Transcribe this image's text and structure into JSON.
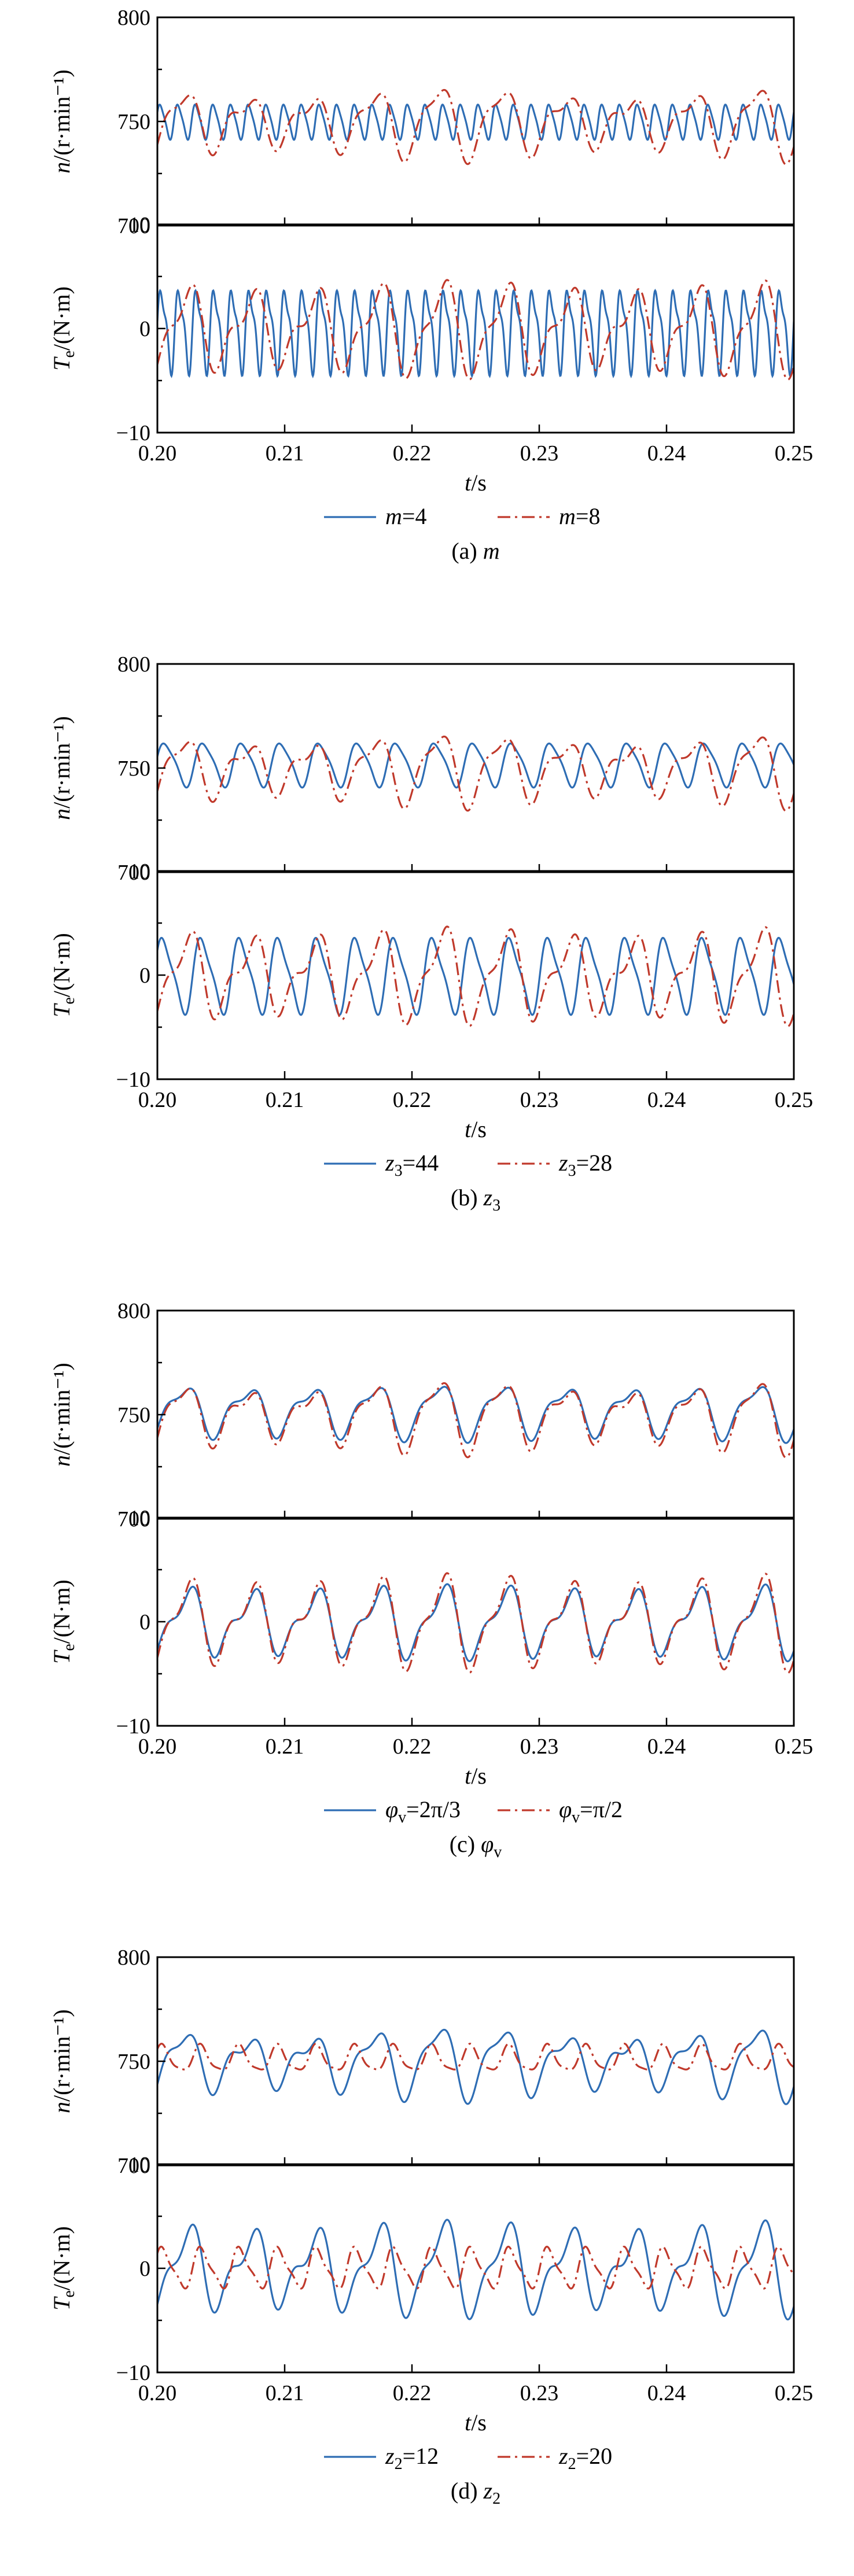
{
  "chart_data": [
    {
      "id": "a",
      "caption": {
        "prefix": "(a) ",
        "symbol": "m",
        "sub": ""
      },
      "legend": [
        {
          "symbol": "m",
          "sub": "",
          "value": "=4"
        },
        {
          "symbol": "m",
          "sub": "",
          "value": "=8"
        }
      ],
      "xlabel": {
        "symbol": "t",
        "unit": "/s"
      },
      "xlim": [
        0.2,
        0.25
      ],
      "xticks": [
        "0.20",
        "0.21",
        "0.22",
        "0.23",
        "0.24",
        "0.25"
      ],
      "panels": [
        {
          "type": "line",
          "ylabel": "n/(r·min⁻¹)",
          "ylim": [
            700,
            800
          ],
          "yticks": [
            "700",
            "750",
            "800"
          ],
          "series": [
            {
              "freq": 720,
              "terms": [
                [
                  8,
                  0,
                  0.4
                ],
                [
                  1.5,
                  2,
                  1.1
                ]
              ],
              "offset": 750
            },
            {
              "freq": 200,
              "terms": [
                [
                  13,
                  0,
                  -1.0
                ],
                [
                  5,
                  2,
                  0.3
                ]
              ],
              "offset": 750,
              "env": 0.25
            }
          ]
        },
        {
          "type": "line",
          "ylabel": "Te/(N·m)",
          "ylim": [
            -10,
            10
          ],
          "yticks": [
            "−10",
            "0",
            "10"
          ],
          "series": [
            {
              "freq": 720,
              "terms": [
                [
                  3.6,
                  0,
                  0.0
                ],
                [
                  1.2,
                  2,
                  0.6
                ]
              ],
              "offset": 0
            },
            {
              "freq": 200,
              "terms": [
                [
                  3.5,
                  0,
                  -1.4
                ],
                [
                  1.5,
                  2,
                  0.2
                ]
              ],
              "offset": 0,
              "env": 0.15
            }
          ]
        }
      ]
    },
    {
      "id": "b",
      "caption": {
        "prefix": "(b) ",
        "symbol": "z",
        "sub": "3"
      },
      "legend": [
        {
          "symbol": "z",
          "sub": "3",
          "value": "=44"
        },
        {
          "symbol": "z",
          "sub": "3",
          "value": "=28"
        }
      ],
      "xlabel": {
        "symbol": "t",
        "unit": "/s"
      },
      "xlim": [
        0.2,
        0.25
      ],
      "xticks": [
        "0.20",
        "0.21",
        "0.22",
        "0.23",
        "0.24",
        "0.25"
      ],
      "panels": [
        {
          "type": "line",
          "ylabel": "n/(r·min⁻¹)",
          "ylim": [
            700,
            800
          ],
          "yticks": [
            "700",
            "750",
            "800"
          ],
          "series": [
            {
              "freq": 330,
              "terms": [
                [
                  10,
                  0,
                  0.2
                ],
                [
                  2,
                  2,
                  0.9
                ]
              ],
              "offset": 752
            },
            {
              "freq": 200,
              "terms": [
                [
                  13,
                  0,
                  -1.0
                ],
                [
                  5,
                  2,
                  0.3
                ]
              ],
              "offset": 750,
              "env": 0.25
            }
          ]
        },
        {
          "type": "line",
          "ylabel": "Te/(N·m)",
          "ylim": [
            -10,
            10
          ],
          "yticks": [
            "−10",
            "0",
            "10"
          ],
          "series": [
            {
              "freq": 330,
              "terms": [
                [
                  3.4,
                  0,
                  0.5
                ],
                [
                  0.8,
                  2,
                  1.2
                ]
              ],
              "offset": 0
            },
            {
              "freq": 200,
              "terms": [
                [
                  3.5,
                  0,
                  -1.4
                ],
                [
                  1.5,
                  2,
                  0.2
                ]
              ],
              "offset": 0,
              "env": 0.15
            }
          ]
        }
      ]
    },
    {
      "id": "c",
      "caption": {
        "prefix": "(c) ",
        "symbol": "φ",
        "sub": "v"
      },
      "legend": [
        {
          "symbol": "φ",
          "sub": "v",
          "value": "=2π/3"
        },
        {
          "symbol": "φ",
          "sub": "v",
          "value": "=π/2"
        }
      ],
      "xlabel": {
        "symbol": "t",
        "unit": "/s"
      },
      "xlim": [
        0.2,
        0.25
      ],
      "xticks": [
        "0.20",
        "0.21",
        "0.22",
        "0.23",
        "0.24",
        "0.25"
      ],
      "panels": [
        {
          "type": "line",
          "ylabel": "n/(r·min⁻¹)",
          "ylim": [
            700,
            800
          ],
          "yticks": [
            "700",
            "750",
            "800"
          ],
          "series": [
            {
              "freq": 200,
              "terms": [
                [
                  11,
                  0,
                  -1.0
                ],
                [
                  4,
                  2,
                  0.3
                ]
              ],
              "offset": 752,
              "env": 0.1
            },
            {
              "freq": 200,
              "terms": [
                [
                  13,
                  0,
                  -1.0
                ],
                [
                  5,
                  2,
                  0.3
                ]
              ],
              "offset": 750,
              "env": 0.25
            }
          ]
        },
        {
          "type": "line",
          "ylabel": "Te/(N·m)",
          "ylim": [
            -10,
            10
          ],
          "yticks": [
            "−10",
            "0",
            "10"
          ],
          "series": [
            {
              "freq": 200,
              "terms": [
                [
                  2.8,
                  0,
                  -1.4
                ],
                [
                  1.2,
                  2,
                  0.2
                ]
              ],
              "offset": 0,
              "env": 0.1
            },
            {
              "freq": 200,
              "terms": [
                [
                  3.5,
                  0,
                  -1.4
                ],
                [
                  1.5,
                  2,
                  0.2
                ]
              ],
              "offset": 0,
              "env": 0.15
            }
          ]
        }
      ]
    },
    {
      "id": "d",
      "caption": {
        "prefix": "(d) ",
        "symbol": "z",
        "sub": "2"
      },
      "legend": [
        {
          "symbol": "z",
          "sub": "2",
          "value": "=12"
        },
        {
          "symbol": "z",
          "sub": "2",
          "value": "=20"
        }
      ],
      "xlabel": {
        "symbol": "t",
        "unit": "/s"
      },
      "xlim": [
        0.2,
        0.25
      ],
      "xticks": [
        "0.20",
        "0.21",
        "0.22",
        "0.23",
        "0.24",
        "0.25"
      ],
      "panels": [
        {
          "type": "line",
          "ylabel": "n/(r·min⁻¹)",
          "ylim": [
            700,
            800
          ],
          "yticks": [
            "700",
            "750",
            "800"
          ],
          "series": [
            {
              "freq": 200,
              "terms": [
                [
                  13,
                  0,
                  -1.0
                ],
                [
                  5,
                  2,
                  0.3
                ]
              ],
              "offset": 750,
              "env": 0.25
            },
            {
              "freq": 330,
              "terms": [
                [
                  6,
                  0,
                  0.8
                ],
                [
                  1.5,
                  2,
                  0.4
                ]
              ],
              "offset": 751
            }
          ]
        },
        {
          "type": "line",
          "ylabel": "Te/(N·m)",
          "ylim": [
            -10,
            10
          ],
          "yticks": [
            "−10",
            "0",
            "10"
          ],
          "series": [
            {
              "freq": 200,
              "terms": [
                [
                  3.5,
                  0,
                  -1.4
                ],
                [
                  1.5,
                  2,
                  0.2
                ]
              ],
              "offset": 0,
              "env": 0.15
            },
            {
              "freq": 330,
              "terms": [
                [
                  1.8,
                  0,
                  0.6
                ],
                [
                  0.5,
                  2,
                  1.0
                ]
              ],
              "offset": 0
            }
          ]
        }
      ]
    }
  ],
  "series_styles": [
    {
      "color": "#2e6db4",
      "dash": ""
    },
    {
      "color": "#c0392b",
      "dash": "22 8 4 8"
    }
  ]
}
